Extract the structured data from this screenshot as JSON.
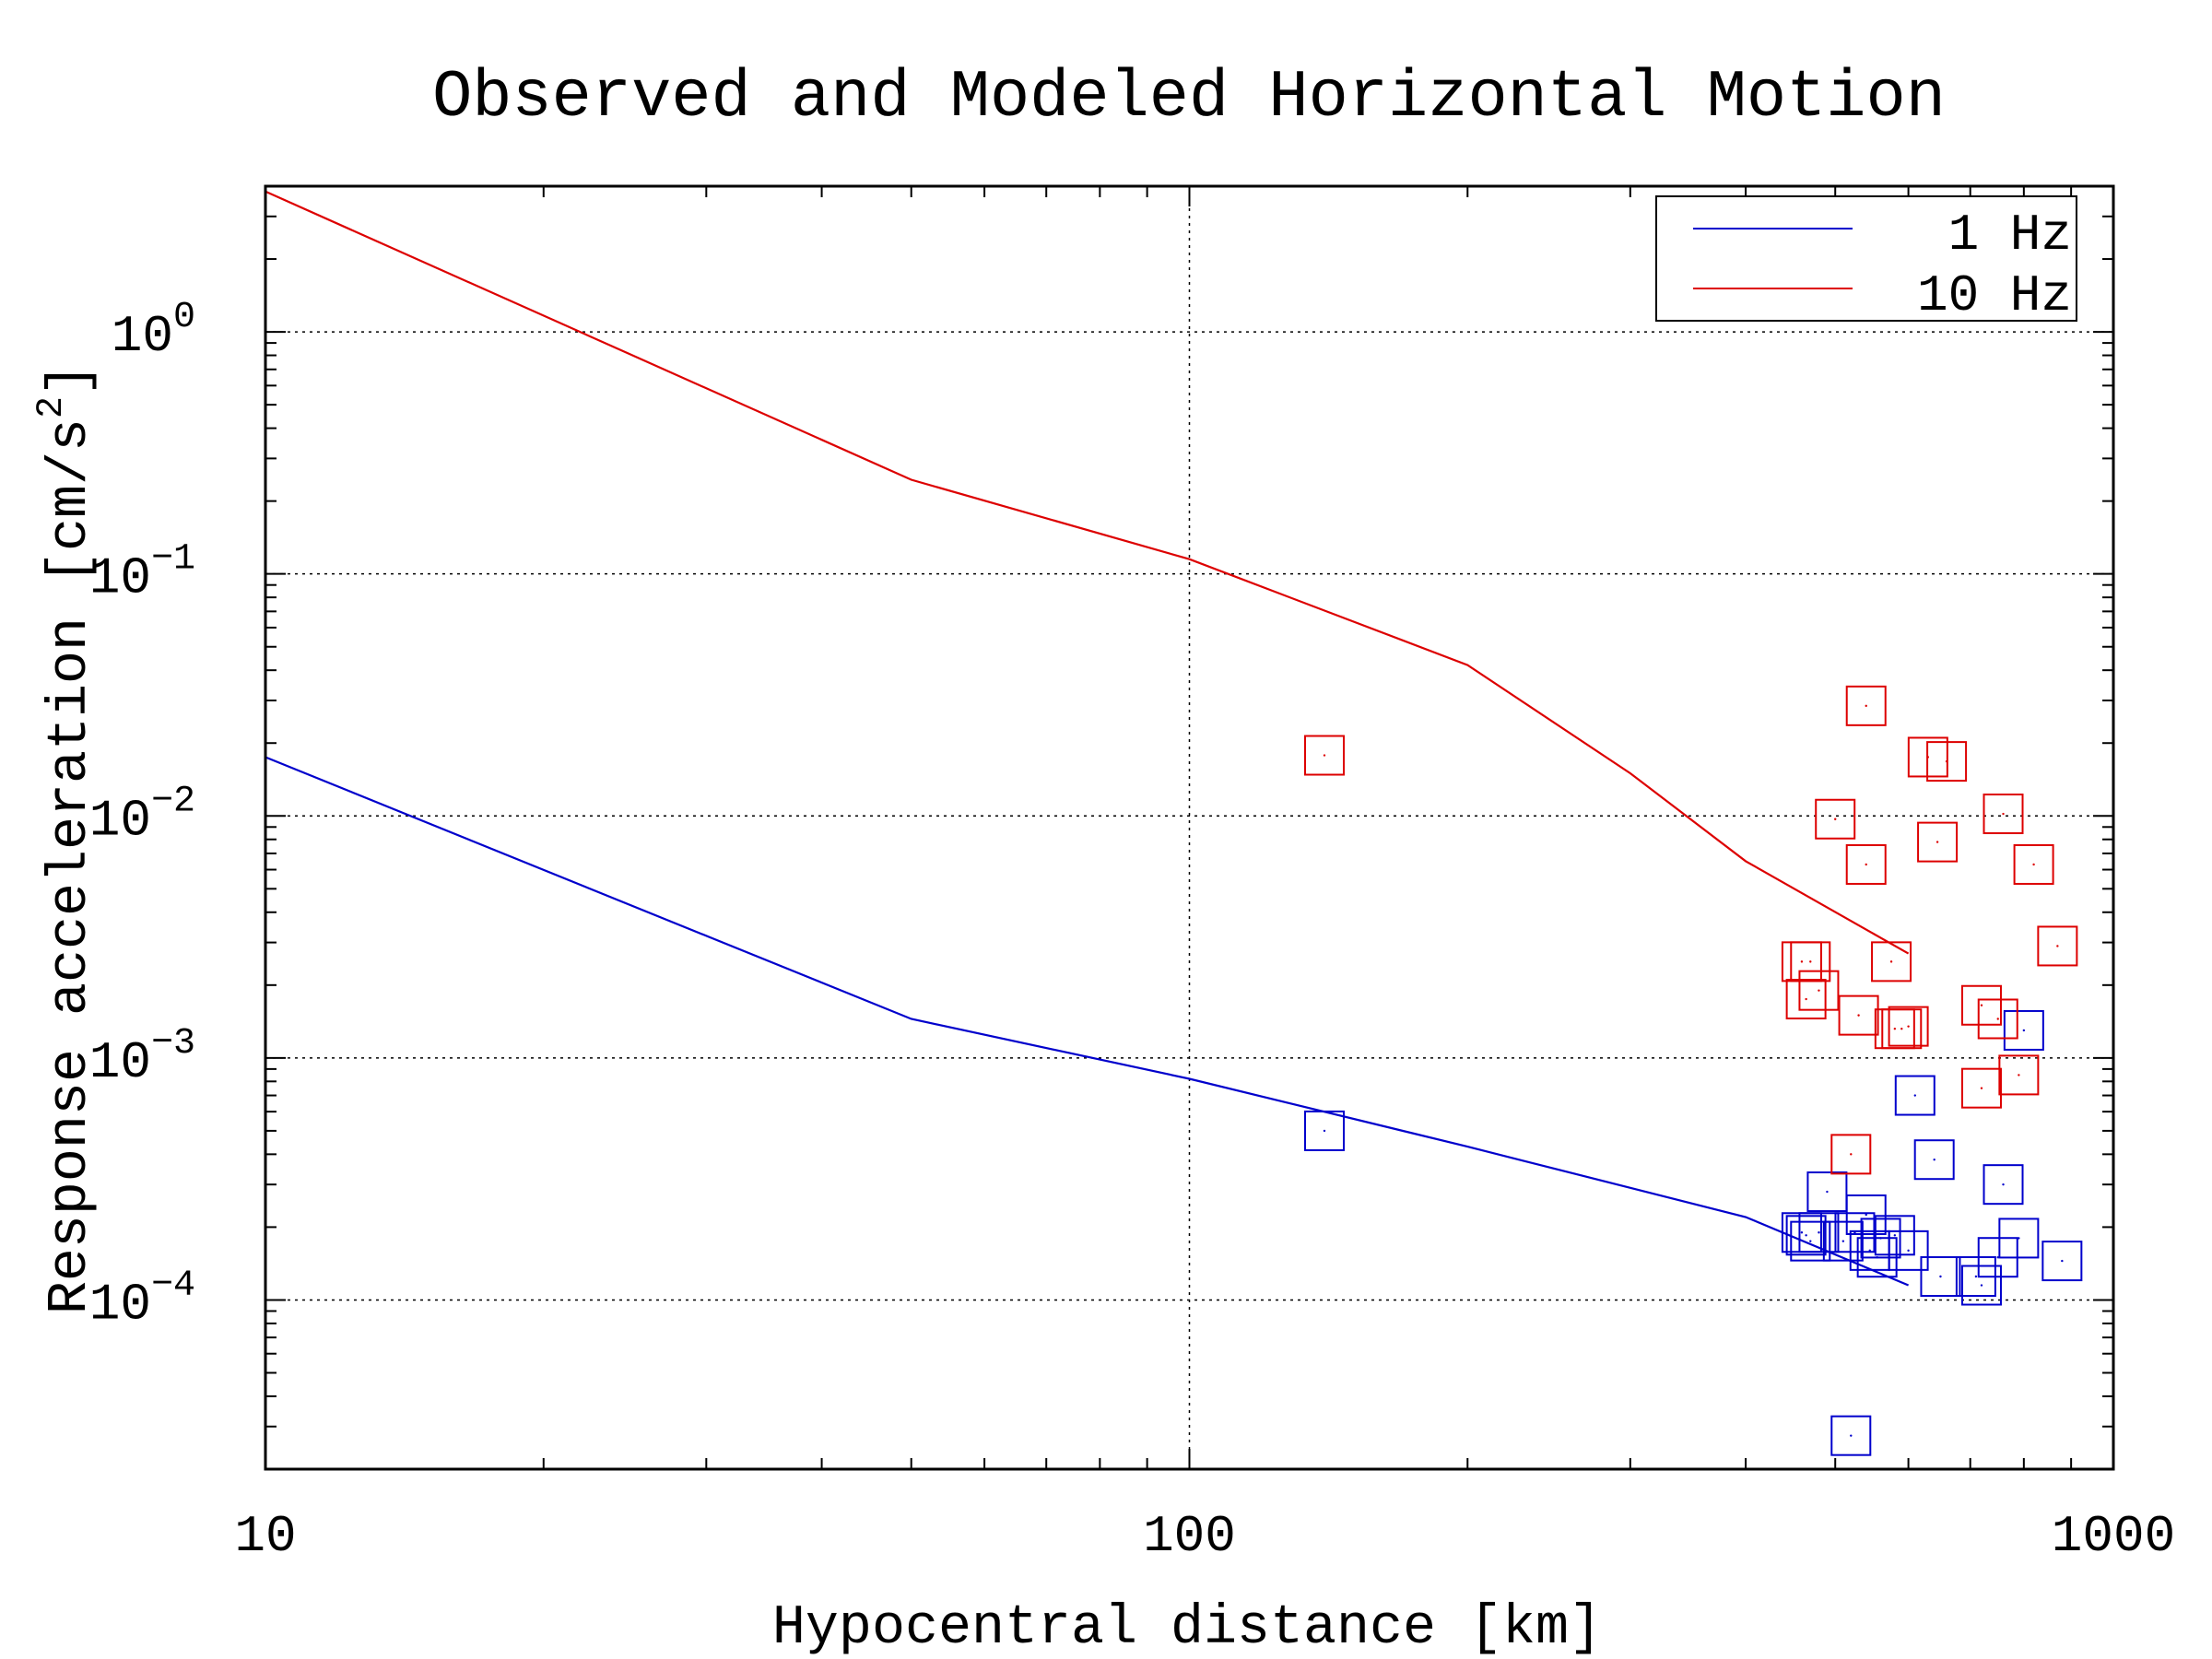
{
  "chart_data": {
    "type": "scatter",
    "title": "Observed and Modeled Horizontal Motion",
    "xlabel": "Hypocentral distance [km]",
    "ylabel": "Response acceleration [cm/s^2]",
    "x_scale": "log",
    "y_scale": "log",
    "xlim": [
      10,
      1000
    ],
    "ylim": [
      2e-05,
      4
    ],
    "x_ticks": [
      {
        "value": 10,
        "label": "10"
      },
      {
        "value": 100,
        "label": "100"
      },
      {
        "value": 1000,
        "label": "1000"
      }
    ],
    "y_ticks": [
      {
        "value": 1,
        "base": "10",
        "exp": "0"
      },
      {
        "value": 0.1,
        "base": "10",
        "exp": "−1"
      },
      {
        "value": 0.01,
        "base": "10",
        "exp": "−2"
      },
      {
        "value": 0.001,
        "base": "10",
        "exp": "−3"
      },
      {
        "value": 0.0001,
        "base": "10",
        "exp": "−4"
      }
    ],
    "grid": true,
    "legend_position": "top-right",
    "series": [
      {
        "name": "1 Hz",
        "color": "#0000cc",
        "model": [
          [
            10,
            0.0175
          ],
          [
            50,
            0.00145
          ],
          [
            100,
            0.00082
          ],
          [
            200,
            0.00043
          ],
          [
            400,
            0.00022
          ],
          [
            600,
            0.000115
          ]
        ],
        "observed": [
          [
            140,
            0.0005
          ],
          [
            490,
            0.00028
          ],
          [
            460,
            0.00019
          ],
          [
            465,
            0.000185
          ],
          [
            470,
            0.000175
          ],
          [
            480,
            0.00019
          ],
          [
            510,
            0.000175
          ],
          [
            525,
            0.00019
          ],
          [
            540,
            0.000225
          ],
          [
            560,
            0.00018
          ],
          [
            555,
            0.00015
          ],
          [
            545,
            0.00016
          ],
          [
            580,
            0.000185
          ],
          [
            600,
            0.00016
          ],
          [
            650,
            0.000125
          ],
          [
            640,
            0.00038
          ],
          [
            610,
            0.0007
          ],
          [
            710,
            0.000125
          ],
          [
            720,
            0.000115
          ],
          [
            750,
            0.00015
          ],
          [
            760,
            0.0003
          ],
          [
            790,
            0.00018
          ],
          [
            800,
            0.0013
          ],
          [
            880,
            0.000145
          ],
          [
            520,
            2.75e-05
          ]
        ]
      },
      {
        "name": "10 Hz",
        "color": "#dd0000",
        "model": [
          [
            10,
            3.8
          ],
          [
            50,
            0.245
          ],
          [
            100,
            0.115
          ],
          [
            200,
            0.042
          ],
          [
            300,
            0.015
          ],
          [
            400,
            0.0065
          ],
          [
            600,
            0.0027
          ]
        ],
        "observed": [
          [
            140,
            0.0178
          ],
          [
            540,
            0.0285
          ],
          [
            500,
            0.0097
          ],
          [
            540,
            0.0063
          ],
          [
            630,
            0.0175
          ],
          [
            660,
            0.0168
          ],
          [
            645,
            0.0078
          ],
          [
            760,
            0.0102
          ],
          [
            820,
            0.0063
          ],
          [
            870,
            0.0029
          ],
          [
            460,
            0.0025
          ],
          [
            470,
            0.0025
          ],
          [
            480,
            0.0019
          ],
          [
            465,
            0.00175
          ],
          [
            575,
            0.0025
          ],
          [
            530,
            0.0015
          ],
          [
            580,
            0.00132
          ],
          [
            590,
            0.00132
          ],
          [
            600,
            0.00135
          ],
          [
            720,
            0.00165
          ],
          [
            750,
            0.00145
          ],
          [
            720,
            0.00075
          ],
          [
            790,
            0.00085
          ],
          [
            520,
            0.0004
          ]
        ]
      }
    ]
  }
}
